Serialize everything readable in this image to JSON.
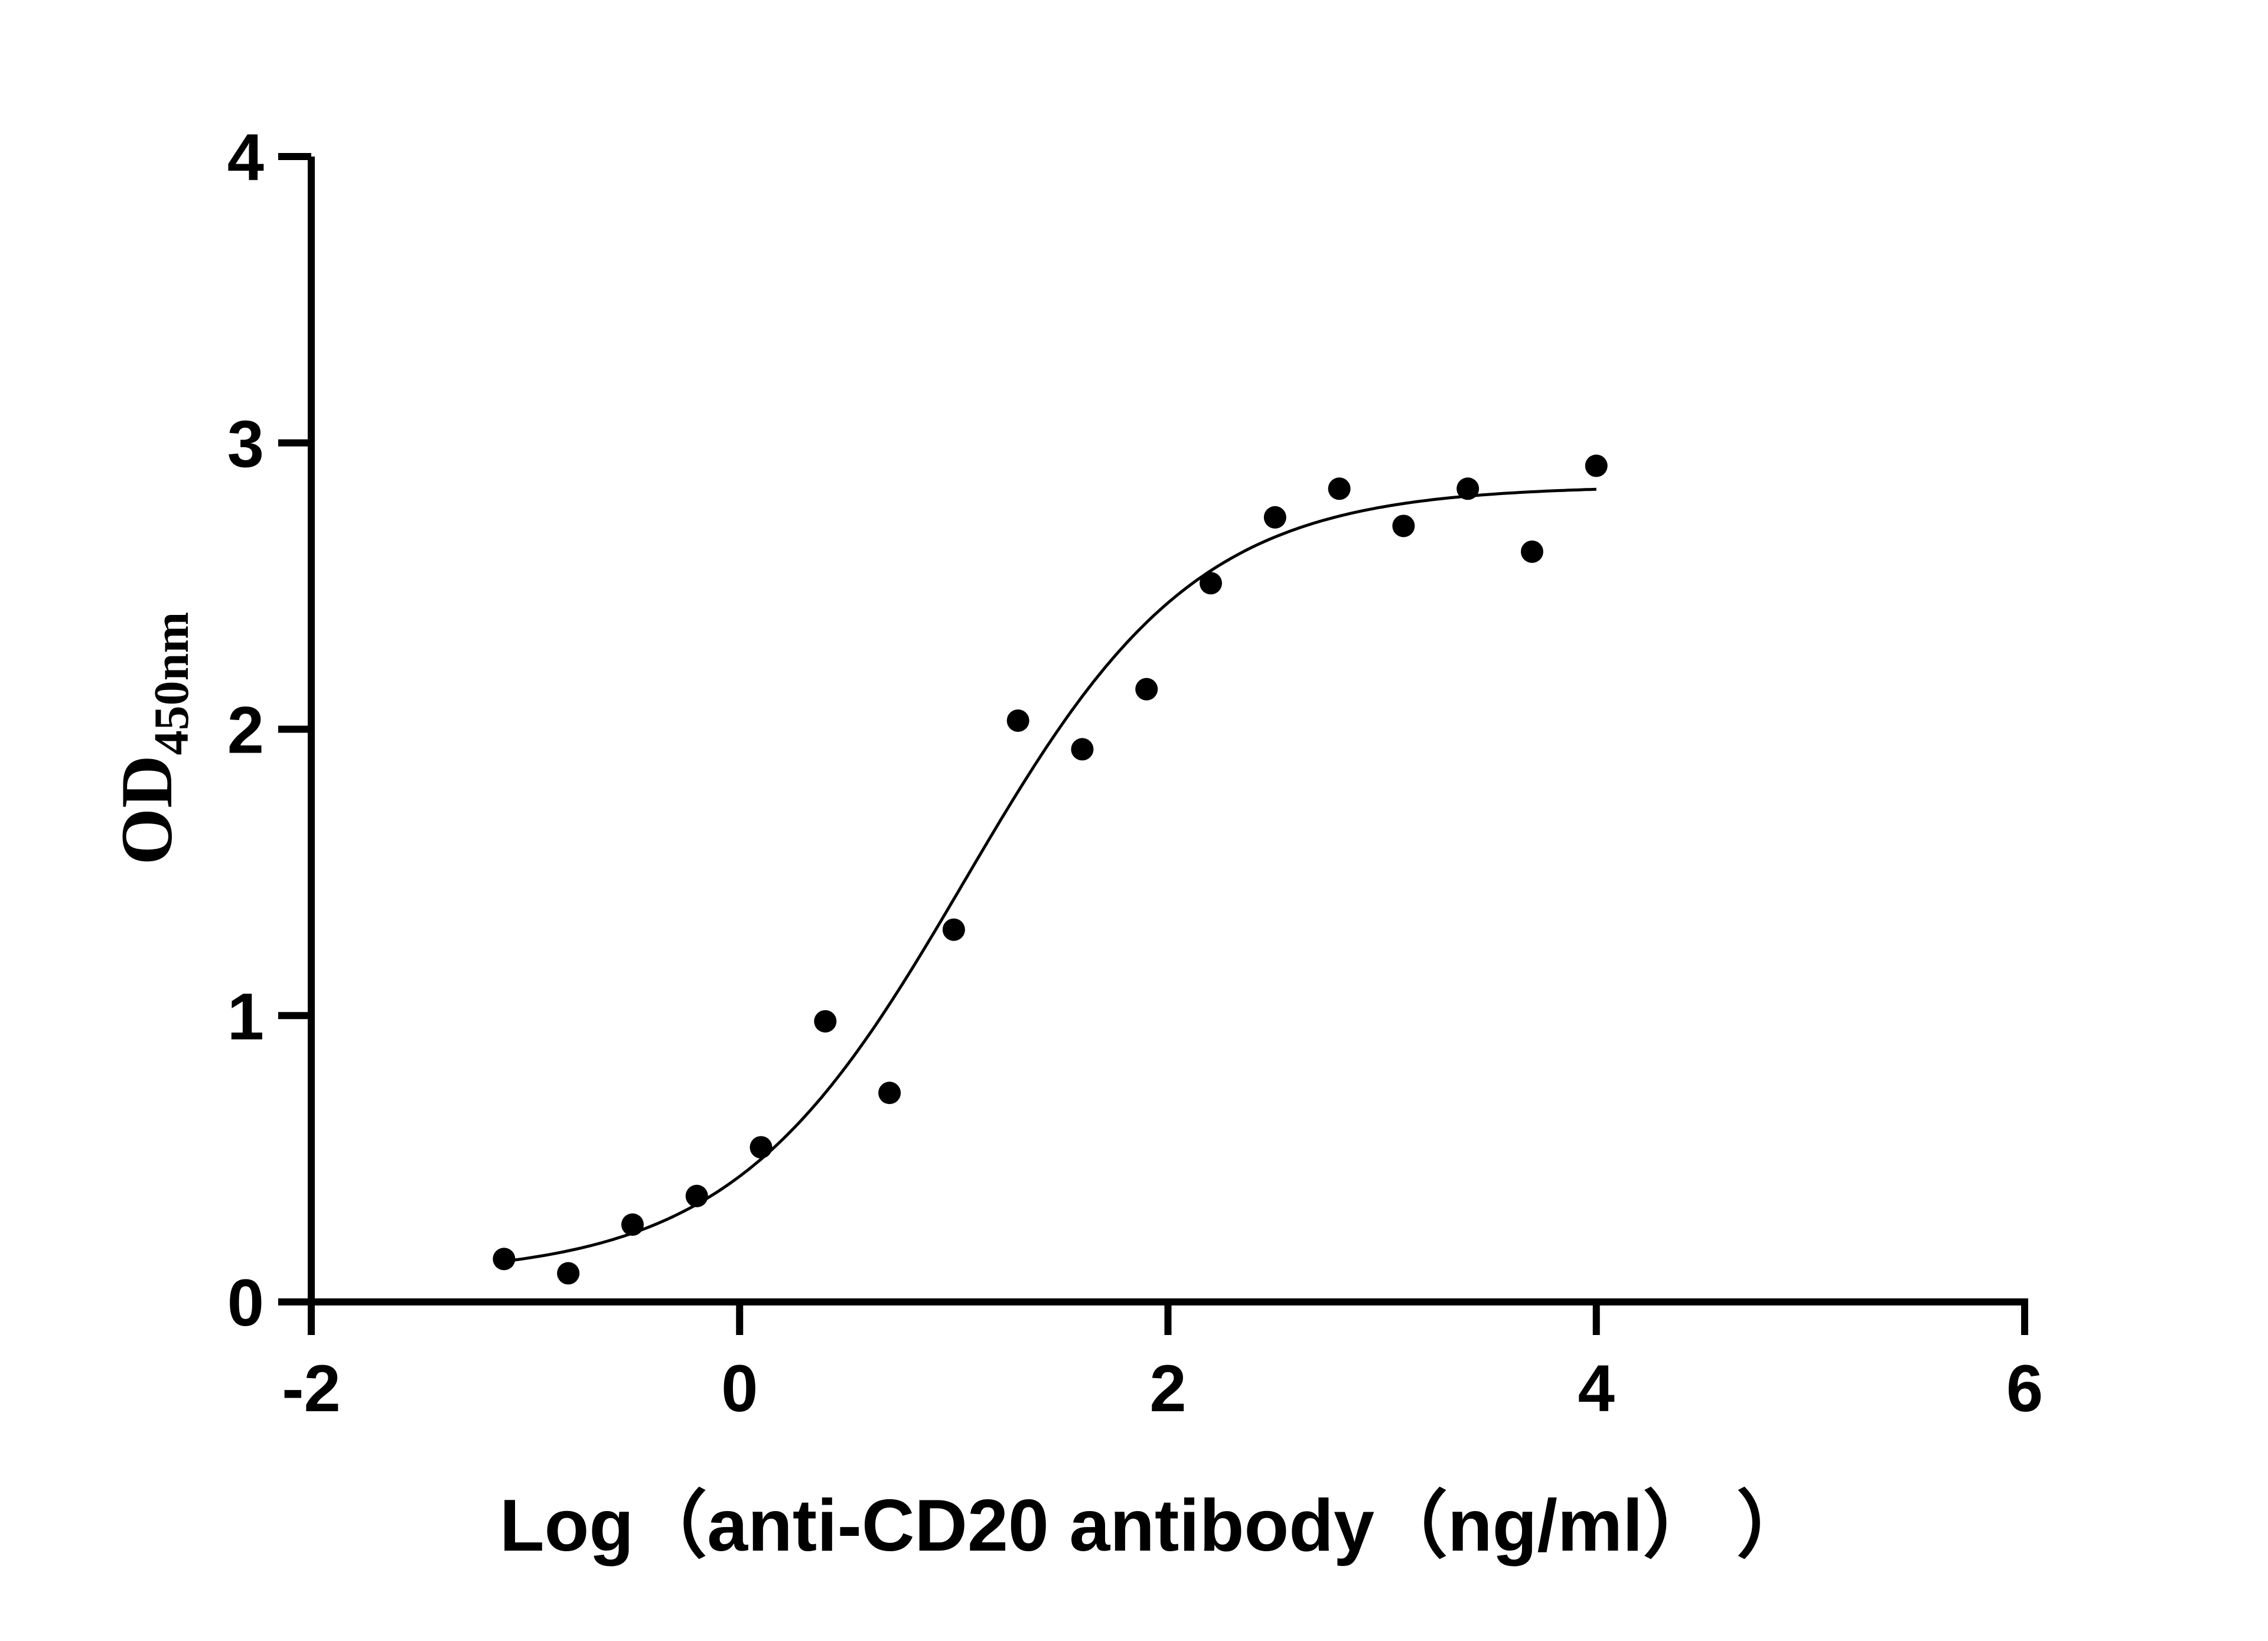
{
  "chart_data": {
    "type": "scatter",
    "xlabel": "Log（anti-CD20 antibody（ng/ml）  ）",
    "ylabel": "OD",
    "ylabel_subscript": "450nm",
    "xlim": [
      -2,
      6
    ],
    "ylim": [
      0,
      4
    ],
    "x_ticks": [
      -2,
      0,
      2,
      4,
      6
    ],
    "y_ticks": [
      0,
      1,
      2,
      3,
      4
    ],
    "x_tick_labels": [
      "-2",
      "0",
      "2",
      "4",
      "6"
    ],
    "y_tick_labels": [
      "0",
      "1",
      "2",
      "3",
      "4"
    ],
    "grid": false,
    "marker_color": "#000000",
    "series": [
      {
        "points": [
          {
            "x": -1.1,
            "y": 0.15
          },
          {
            "x": -0.8,
            "y": 0.1
          },
          {
            "x": -0.5,
            "y": 0.27
          },
          {
            "x": -0.2,
            "y": 0.37
          },
          {
            "x": 0.1,
            "y": 0.54
          },
          {
            "x": 0.4,
            "y": 0.98
          },
          {
            "x": 0.7,
            "y": 0.73
          },
          {
            "x": 1.0,
            "y": 1.3
          },
          {
            "x": 1.3,
            "y": 2.03
          },
          {
            "x": 1.6,
            "y": 1.93
          },
          {
            "x": 1.9,
            "y": 2.14
          },
          {
            "x": 2.2,
            "y": 2.51
          },
          {
            "x": 2.5,
            "y": 2.74
          },
          {
            "x": 2.8,
            "y": 2.84
          },
          {
            "x": 3.1,
            "y": 2.71
          },
          {
            "x": 3.4,
            "y": 2.84
          },
          {
            "x": 3.7,
            "y": 2.62
          },
          {
            "x": 4.0,
            "y": 2.92
          }
        ]
      }
    ],
    "fit_curve": {
      "model": "4PL",
      "bottom": 0.09,
      "top": 2.85,
      "log_ec50": 1.05,
      "hill_slope": 0.8,
      "x_range": [
        -1.1,
        4.0
      ]
    }
  }
}
